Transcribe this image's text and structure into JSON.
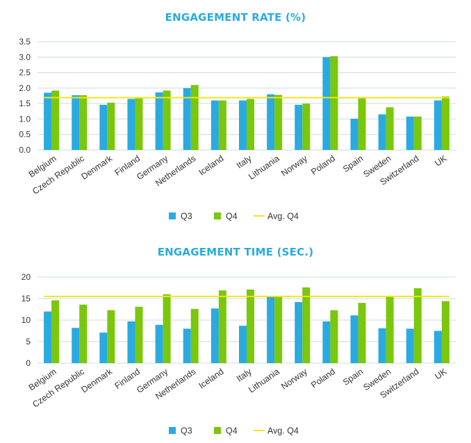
{
  "colors": {
    "q3": "#29abe2",
    "q4": "#7ac70c",
    "avg": "#f5e415",
    "title": "#29abe2",
    "grid": "#c6dbe8"
  },
  "chart_data": [
    {
      "type": "bar",
      "title": "ENGAGEMENT RATE (%)",
      "categories": [
        "Belgium",
        "Czech Republic",
        "Denmark",
        "Finland",
        "Germany",
        "Netherlands",
        "Iceland",
        "Italy",
        "Lithuania",
        "Norway",
        "Poland",
        "Spain",
        "Sweden",
        "Switzerland",
        "UK"
      ],
      "series": [
        {
          "name": "Q3",
          "values": [
            1.85,
            1.77,
            1.46,
            1.65,
            1.86,
            2.0,
            1.6,
            1.6,
            1.8,
            1.46,
            3.0,
            1.01,
            1.15,
            1.08,
            1.6
          ]
        },
        {
          "name": "Q4",
          "values": [
            1.92,
            1.77,
            1.53,
            1.67,
            1.92,
            2.1,
            1.6,
            1.65,
            1.78,
            1.5,
            3.03,
            1.67,
            1.38,
            1.08,
            1.73
          ]
        }
      ],
      "avg_line": {
        "name": "Avg. Q4",
        "value": 1.69
      },
      "ylim": [
        0,
        3.5
      ],
      "yticks": [
        "0.0",
        "0.5",
        "1.0",
        "1.5",
        "2.0",
        "2.5",
        "3.0",
        "3.5"
      ],
      "ytick_values": [
        0,
        0.5,
        1,
        1.5,
        2,
        2.5,
        3,
        3.5
      ],
      "grid": true,
      "legend": "bottom"
    },
    {
      "type": "bar",
      "title": "ENGAGEMENT TIME (SEC.)",
      "categories": [
        "Belgium",
        "Czech Republic",
        "Denmark",
        "Finland",
        "Germany",
        "Netherlands",
        "Iceland",
        "Italy",
        "Lithuania",
        "Norway",
        "Poland",
        "Spain",
        "Sweden",
        "Switzerland",
        "UK"
      ],
      "series": [
        {
          "name": "Q3",
          "values": [
            12.0,
            8.2,
            7.1,
            9.7,
            8.9,
            8.0,
            12.7,
            8.7,
            15.4,
            14.2,
            9.7,
            11.1,
            8.1,
            8.0,
            7.5
          ]
        },
        {
          "name": "Q4",
          "values": [
            14.6,
            13.6,
            12.3,
            13.1,
            16.0,
            12.6,
            16.9,
            17.1,
            15.4,
            17.6,
            12.3,
            14.0,
            15.4,
            17.4,
            14.4
          ]
        }
      ],
      "avg_line": {
        "name": "Avg. Q4",
        "value": 15.5
      },
      "ylim": [
        0,
        20
      ],
      "yticks": [
        "0",
        "5",
        "10",
        "15",
        "20"
      ],
      "ytick_values": [
        0,
        5,
        10,
        15,
        20
      ],
      "grid": true,
      "legend": "bottom"
    }
  ]
}
